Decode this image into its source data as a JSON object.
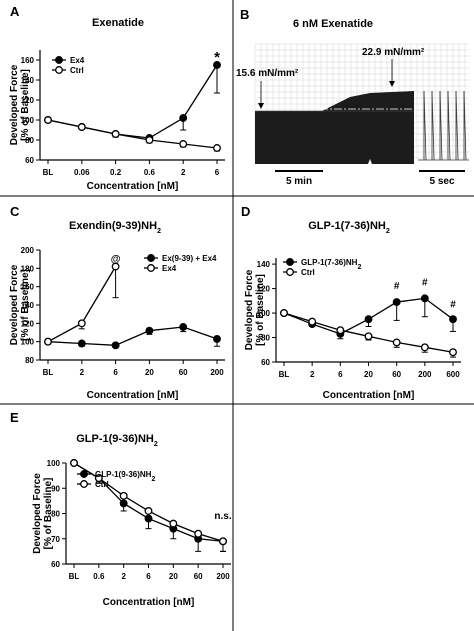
{
  "chart_data": [
    {
      "panel_label": "A",
      "type": "line",
      "title": "Exenatide",
      "ylabel": "Developed Force",
      "ylabel2": "[% of Baseline]",
      "xlabel": "Concentration [nM]",
      "categories": [
        "BL",
        "0.06",
        "0.2",
        "0.6",
        "2",
        "6"
      ],
      "ylim": [
        60,
        170
      ],
      "yticks": [
        60,
        80,
        100,
        120,
        140,
        160
      ],
      "legend": "top-left",
      "series": [
        {
          "name": "Ex4",
          "marker": "filled",
          "values": [
            100,
            93,
            86,
            82,
            102,
            155
          ],
          "err": [
            0,
            2,
            3,
            3,
            12,
            28
          ]
        },
        {
          "name": "Ctrl",
          "marker": "open",
          "values": [
            100,
            93,
            86,
            80,
            76,
            72
          ],
          "err": [
            0,
            2,
            3,
            3,
            3,
            3
          ]
        }
      ],
      "annotations": [
        {
          "text": "*",
          "x_index": 5,
          "y": 164
        }
      ]
    },
    {
      "panel_label": "C",
      "type": "line",
      "title": "Exendin(9-39)NH",
      "title_sub": "2",
      "ylabel": "Developed Force",
      "ylabel2": "[% of Baseline]",
      "xlabel": "Concentration [nM]",
      "categories": [
        "BL",
        "2",
        "6",
        "20",
        "60",
        "200"
      ],
      "ylim": [
        80,
        200
      ],
      "yticks": [
        80,
        100,
        120,
        140,
        160,
        180,
        200
      ],
      "legend": "top-right",
      "series": [
        {
          "name": "Ex(9-39) + Ex4",
          "marker": "filled",
          "values": [
            100,
            98,
            96,
            112,
            116,
            103
          ],
          "err": [
            0,
            3,
            2,
            4,
            5,
            8
          ]
        },
        {
          "name": "Ex4",
          "marker": "open",
          "values": [
            100,
            120,
            182,
            null,
            null,
            null
          ],
          "err": [
            0,
            6,
            34,
            0,
            0,
            0
          ]
        }
      ],
      "annotations": [
        {
          "text": "@",
          "x_index": 2,
          "y": 190
        }
      ]
    },
    {
      "panel_label": "D",
      "type": "line",
      "title": "GLP-1(7-36)NH",
      "title_sub": "2",
      "ylabel": "Developed Force",
      "ylabel2": "[% of Baseline]",
      "xlabel": "Concentration [nM]",
      "categories": [
        "BL",
        "2",
        "6",
        "20",
        "60",
        "200",
        "600"
      ],
      "ylim": [
        60,
        145
      ],
      "yticks": [
        60,
        80,
        100,
        120,
        140
      ],
      "legend": "top-left",
      "series": [
        {
          "name": "GLP-1(7-36)NH",
          "name_sub": "2",
          "marker": "filled",
          "values": [
            100,
            91,
            83,
            95,
            109,
            112,
            95
          ],
          "err": [
            0,
            2,
            4,
            6,
            15,
            15,
            10
          ]
        },
        {
          "name": "Ctrl",
          "marker": "open",
          "values": [
            100,
            93,
            86,
            81,
            76,
            72,
            68
          ],
          "err": [
            0,
            2,
            3,
            3,
            4,
            4,
            4
          ]
        }
      ],
      "annotations": [
        {
          "text": "#",
          "x_index": 4,
          "y": 122
        },
        {
          "text": "#",
          "x_index": 5,
          "y": 125
        },
        {
          "text": "#",
          "x_index": 6,
          "y": 107
        }
      ]
    },
    {
      "panel_label": "E",
      "type": "line",
      "title": "GLP-1(9-36)NH",
      "title_sub": "2",
      "ylabel": "Developed Force",
      "ylabel2": "[% of Baseline]",
      "xlabel": "Concentration [nM]",
      "categories": [
        "BL",
        "0.6",
        "2",
        "6",
        "20",
        "60",
        "200"
      ],
      "ylim": [
        60,
        100
      ],
      "yticks": [
        60,
        70,
        80,
        90,
        100
      ],
      "legend": "top-left",
      "series": [
        {
          "name": "GLP-1(9-36)NH",
          "name_sub": "2",
          "marker": "filled",
          "values": [
            100,
            94,
            84,
            78,
            74,
            70,
            69
          ],
          "err": [
            0,
            2,
            3,
            4,
            4,
            5,
            4
          ]
        },
        {
          "name": "Ctrl",
          "marker": "open",
          "values": [
            100,
            94,
            87,
            81,
            76,
            72,
            69
          ],
          "err": [
            0,
            2,
            2,
            2,
            2,
            3,
            4
          ]
        }
      ],
      "annotations": [
        {
          "text": "n.s.",
          "x_index": 6,
          "y": 79
        }
      ]
    }
  ],
  "panel_b": {
    "label": "B",
    "title": "6 nM Exenatide",
    "baseline_label": "15.6 mN/mm²",
    "peak_label": "22.9 mN/mm²",
    "scale_slow": "5 min",
    "scale_fast": "5 sec"
  }
}
